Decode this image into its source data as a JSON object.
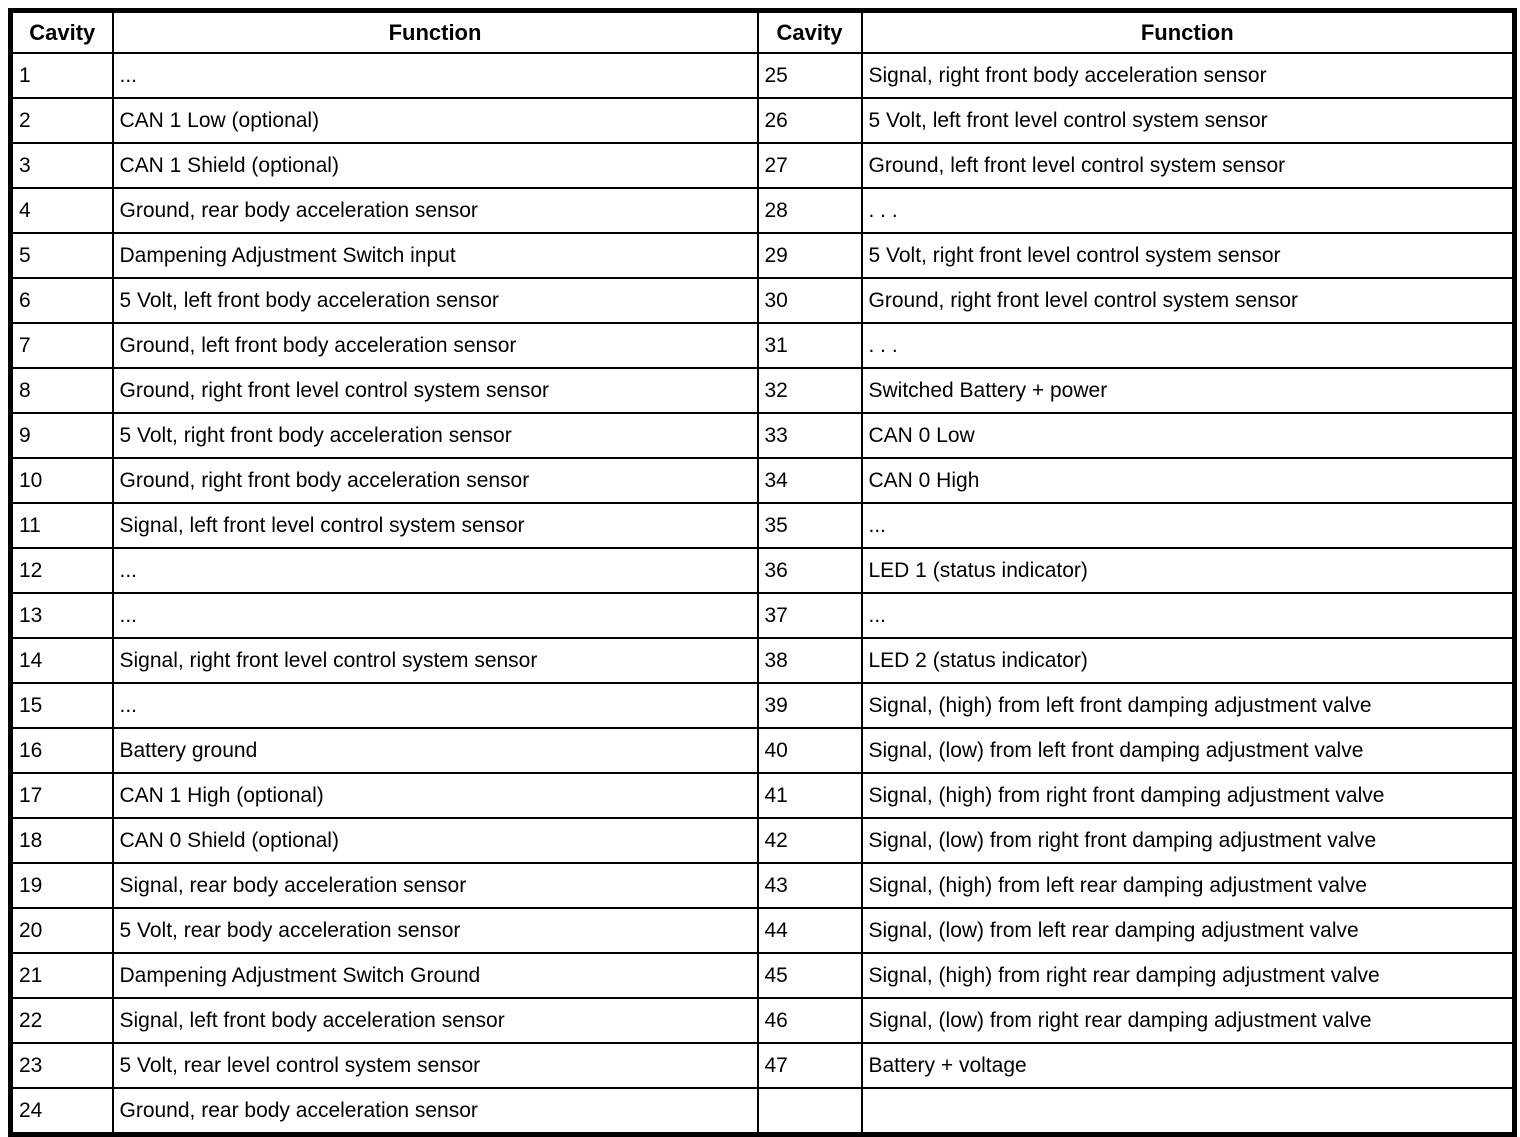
{
  "table": {
    "headers": {
      "cavity": "Cavity",
      "function": "Function"
    },
    "left_rows": [
      {
        "cavity": "1",
        "function": "..."
      },
      {
        "cavity": "2",
        "function": "CAN 1 Low (optional)"
      },
      {
        "cavity": "3",
        "function": "CAN 1 Shield (optional)"
      },
      {
        "cavity": "4",
        "function": "Ground, rear body acceleration sensor"
      },
      {
        "cavity": "5",
        "function": "Dampening Adjustment Switch input"
      },
      {
        "cavity": "6",
        "function": "5 Volt, left front body acceleration sensor"
      },
      {
        "cavity": "7",
        "function": "Ground, left front body acceleration sensor"
      },
      {
        "cavity": "8",
        "function": "Ground, right front level control system sensor"
      },
      {
        "cavity": "9",
        "function": "5 Volt, right front body acceleration sensor"
      },
      {
        "cavity": "10",
        "function": "Ground, right front body acceleration sensor"
      },
      {
        "cavity": "11",
        "function": "Signal, left front level control system sensor"
      },
      {
        "cavity": "12",
        "function": "..."
      },
      {
        "cavity": "13",
        "function": "..."
      },
      {
        "cavity": "14",
        "function": "Signal, right front level control system sensor"
      },
      {
        "cavity": "15",
        "function": "..."
      },
      {
        "cavity": "16",
        "function": "Battery ground"
      },
      {
        "cavity": "17",
        "function": "CAN 1 High (optional)"
      },
      {
        "cavity": "18",
        "function": "CAN 0 Shield (optional)"
      },
      {
        "cavity": "19",
        "function": "Signal, rear body acceleration sensor"
      },
      {
        "cavity": "20",
        "function": "5 Volt, rear body acceleration sensor"
      },
      {
        "cavity": "21",
        "function": "Dampening Adjustment Switch Ground"
      },
      {
        "cavity": "22",
        "function": "Signal, left front body acceleration sensor"
      },
      {
        "cavity": "23",
        "function": "5 Volt, rear level control system sensor"
      },
      {
        "cavity": "24",
        "function": "Ground, rear body acceleration sensor"
      }
    ],
    "right_rows": [
      {
        "cavity": "25",
        "function": "Signal, right front body acceleration sensor"
      },
      {
        "cavity": "26",
        "function": "5 Volt, left front level control system sensor"
      },
      {
        "cavity": "27",
        "function": "Ground, left front level control system sensor"
      },
      {
        "cavity": "28",
        "function": ". . ."
      },
      {
        "cavity": "29",
        "function": "5 Volt, right front level control system sensor"
      },
      {
        "cavity": "30",
        "function": "Ground, right front level control system sensor"
      },
      {
        "cavity": "31",
        "function": ". . ."
      },
      {
        "cavity": "32",
        "function": "Switched Battery + power"
      },
      {
        "cavity": "33",
        "function": "CAN 0 Low"
      },
      {
        "cavity": "34",
        "function": "CAN 0 High"
      },
      {
        "cavity": "35",
        "function": "..."
      },
      {
        "cavity": "36",
        "function": "LED 1 (status indicator)"
      },
      {
        "cavity": "37",
        "function": "..."
      },
      {
        "cavity": "38",
        "function": "LED 2 (status indicator)"
      },
      {
        "cavity": "39",
        "function": "Signal, (high) from left front damping adjustment valve"
      },
      {
        "cavity": "40",
        "function": "Signal, (low) from left front damping adjustment valve"
      },
      {
        "cavity": "41",
        "function": "Signal, (high) from right front damping adjustment valve"
      },
      {
        "cavity": "42",
        "function": "Signal, (low) from right front damping adjustment valve"
      },
      {
        "cavity": "43",
        "function": "Signal, (high) from left rear damping adjustment valve"
      },
      {
        "cavity": "44",
        "function": "Signal, (low) from left rear damping adjustment valve"
      },
      {
        "cavity": "45",
        "function": "Signal, (high) from right rear damping adjustment valve"
      },
      {
        "cavity": "46",
        "function": "Signal, (low) from right rear damping adjustment valve"
      },
      {
        "cavity": "47",
        "function": "Battery + voltage"
      },
      {
        "cavity": "",
        "function": ""
      }
    ]
  }
}
